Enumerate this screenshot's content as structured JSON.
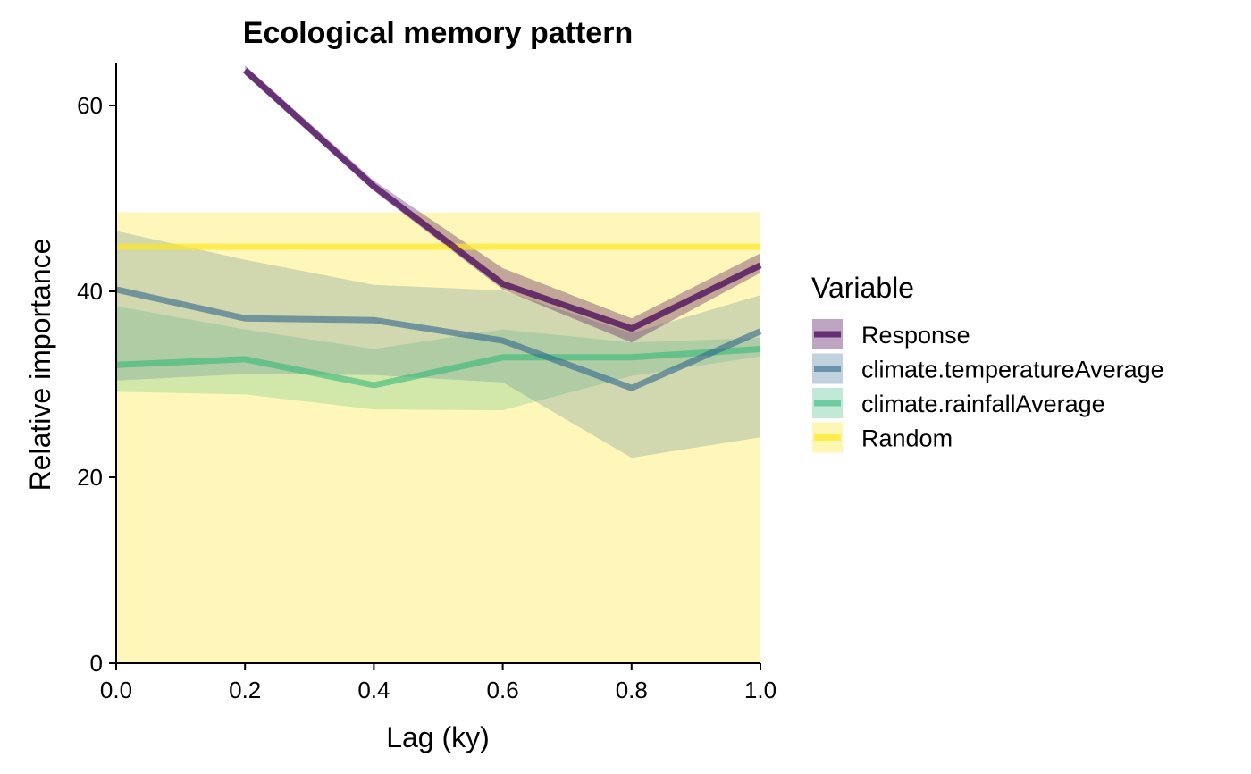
{
  "chart_data": {
    "type": "line",
    "title": "Ecological memory pattern",
    "xlabel": "Lag (ky)",
    "ylabel": "Relative importance",
    "xlim": [
      0,
      1
    ],
    "ylim": [
      0,
      65
    ],
    "x_ticks": [
      0,
      0.2,
      0.4,
      0.6,
      0.8,
      1
    ],
    "x_tick_labels": [
      "0.0",
      "0.2",
      "0.4",
      "0.6",
      "0.8",
      "1.0"
    ],
    "y_ticks": [
      0,
      20,
      40,
      60
    ],
    "y_tick_labels": [
      "0",
      "20",
      "40",
      "60"
    ],
    "grid": false,
    "legend": {
      "title": "Variable",
      "placement": "right"
    },
    "series": [
      {
        "name": "Random",
        "color": "#FDE725",
        "x": [
          0,
          1
        ],
        "y": [
          44.8,
          44.8
        ],
        "lower": [
          0,
          0
        ],
        "upper": [
          48.5,
          48.5
        ]
      },
      {
        "name": "climate.rainfallAverage",
        "color": "#35B779",
        "x": [
          0,
          0.2,
          0.4,
          0.6,
          0.8,
          1.0
        ],
        "y": [
          32.1,
          32.7,
          29.9,
          32.9,
          32.9,
          33.8
        ],
        "lower": [
          29.2,
          28.9,
          27.3,
          27.2,
          30.9,
          33.0
        ],
        "upper": [
          38.4,
          35.9,
          33.8,
          35.9,
          34.5,
          35.0
        ]
      },
      {
        "name": "climate.temperatureAverage",
        "color": "#31688E",
        "x": [
          0,
          0.2,
          0.4,
          0.6,
          0.8,
          1.0
        ],
        "y": [
          40.2,
          37.1,
          36.9,
          34.7,
          29.6,
          35.7
        ],
        "lower": [
          30.4,
          31.1,
          31.0,
          30.2,
          22.1,
          24.3
        ],
        "upper": [
          46.5,
          43.4,
          40.7,
          40.1,
          35.5,
          39.6
        ]
      },
      {
        "name": "Response",
        "color": "#440154",
        "x": [
          0.2,
          0.4,
          0.6,
          0.8,
          1.0
        ],
        "y": [
          63.8,
          51.3,
          40.8,
          36.0,
          42.8
        ],
        "lower": [
          63.3,
          50.8,
          40.2,
          34.5,
          42.0
        ],
        "upper": [
          64.3,
          51.9,
          42.5,
          37.1,
          44.1
        ]
      }
    ],
    "legend_order": [
      "Response",
      "climate.temperatureAverage",
      "climate.rainfallAverage",
      "Random"
    ]
  }
}
